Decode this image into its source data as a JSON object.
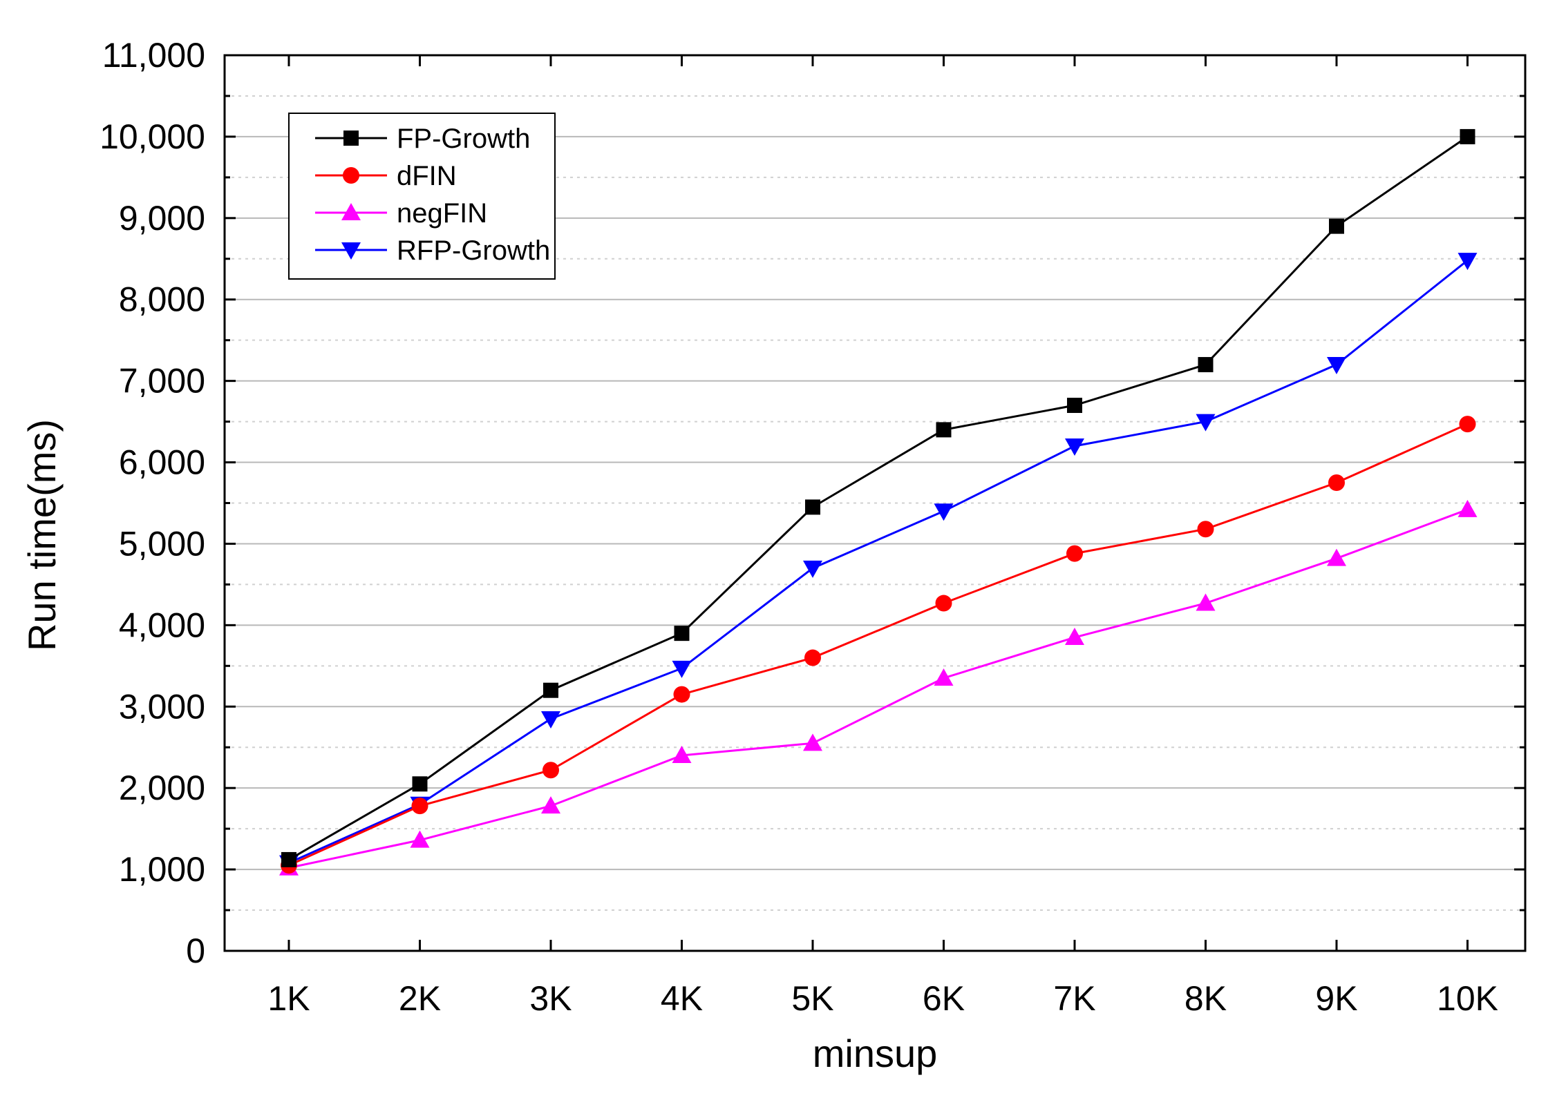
{
  "chart_data": {
    "type": "line",
    "title": "",
    "xlabel": "minsup",
    "ylabel": "Run time(ms)",
    "categories": [
      "1K",
      "2K",
      "3K",
      "4K",
      "5K",
      "6K",
      "7K",
      "8K",
      "9K",
      "10K"
    ],
    "ylim": [
      0,
      11000
    ],
    "yticks": [
      0,
      1000,
      2000,
      3000,
      4000,
      5000,
      6000,
      7000,
      8000,
      9000,
      10000,
      11000
    ],
    "ytick_labels": [
      "0",
      "1,000",
      "2,000",
      "3,000",
      "4,000",
      "5,000",
      "6,000",
      "7,000",
      "8,000",
      "9,000",
      "10,000",
      "11,000"
    ],
    "grid": true,
    "legend_position": "top-left",
    "series": [
      {
        "name": "FP-Growth",
        "color": "#000000",
        "marker": "square",
        "values": [
          1120,
          2050,
          3200,
          3900,
          5450,
          6400,
          6700,
          7200,
          8900,
          10000
        ]
      },
      {
        "name": "dFIN",
        "color": "#ff0000",
        "marker": "circle",
        "values": [
          1050,
          1780,
          2220,
          3150,
          3600,
          4270,
          4880,
          5180,
          5750,
          6470
        ]
      },
      {
        "name": "negFIN",
        "color": "#ff00ff",
        "marker": "triangle-up",
        "values": [
          1020,
          1360,
          1780,
          2400,
          2550,
          3350,
          3850,
          4270,
          4820,
          5420
        ]
      },
      {
        "name": "RFP-Growth",
        "color": "#0000ff",
        "marker": "triangle-down",
        "values": [
          1080,
          1800,
          2850,
          3470,
          4700,
          5400,
          6200,
          6500,
          7200,
          8480
        ]
      }
    ]
  }
}
